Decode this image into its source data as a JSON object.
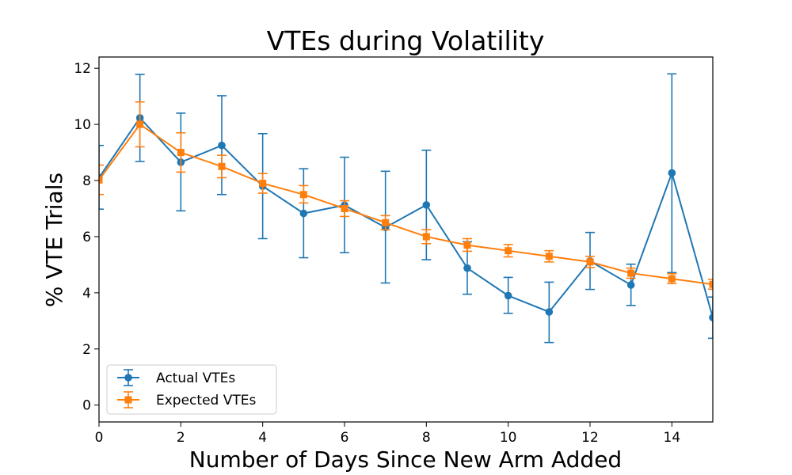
{
  "chart_data": {
    "type": "line",
    "title": "VTEs during Volatility",
    "xlabel": "Number of Days Since New Arm Added",
    "ylabel": "% VTE Trials",
    "xlim": [
      0,
      15
    ],
    "ylim": [
      -0.6,
      12.4
    ],
    "xticks": [
      0,
      2,
      4,
      6,
      8,
      10,
      12,
      14
    ],
    "yticks": [
      0,
      2,
      4,
      6,
      8,
      10,
      12
    ],
    "grid": false,
    "legend_position": "lower-left",
    "series": [
      {
        "name": "Actual VTEs",
        "color": "#1f77b4",
        "marker": "circle",
        "x": [
          0,
          1,
          2,
          3,
          4,
          5,
          6,
          7,
          8,
          9,
          10,
          11,
          12,
          13,
          14,
          15
        ],
        "y": [
          8.1,
          10.23,
          8.65,
          9.25,
          7.8,
          6.83,
          7.12,
          6.33,
          7.13,
          4.88,
          3.9,
          3.32,
          5.13,
          4.28,
          8.27,
          3.12
        ],
        "err_low": [
          6.98,
          8.68,
          6.92,
          7.5,
          5.93,
          5.25,
          5.43,
          4.35,
          5.18,
          3.95,
          3.27,
          2.23,
          4.12,
          3.55,
          4.72,
          2.38
        ],
        "err_high": [
          9.25,
          11.78,
          10.4,
          11.02,
          9.67,
          8.42,
          8.83,
          8.33,
          9.08,
          5.82,
          4.55,
          4.38,
          6.15,
          5.02,
          11.8,
          3.85
        ]
      },
      {
        "name": "Expected VTEs",
        "color": "#ff7f0e",
        "marker": "square",
        "x": [
          0,
          1,
          2,
          3,
          4,
          5,
          6,
          7,
          8,
          9,
          10,
          11,
          12,
          13,
          14,
          15
        ],
        "y": [
          8.02,
          10.0,
          9.0,
          8.5,
          7.9,
          7.5,
          7.0,
          6.5,
          6.0,
          5.7,
          5.5,
          5.3,
          5.1,
          4.7,
          4.5,
          4.3
        ],
        "err_low": [
          7.5,
          9.2,
          8.3,
          8.1,
          7.55,
          7.2,
          6.72,
          6.25,
          5.75,
          5.48,
          5.28,
          5.1,
          4.9,
          4.52,
          4.33,
          4.13
        ],
        "err_high": [
          8.55,
          10.8,
          9.7,
          8.9,
          8.25,
          7.82,
          7.28,
          6.75,
          6.25,
          5.93,
          5.72,
          5.5,
          5.3,
          4.88,
          4.68,
          4.48
        ]
      }
    ]
  }
}
